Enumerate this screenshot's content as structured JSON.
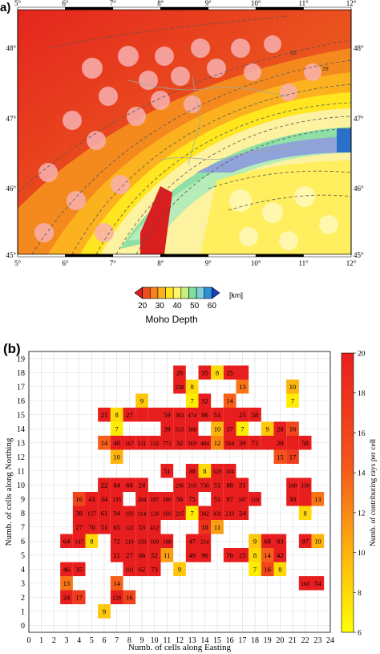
{
  "map": {
    "panel_label": "a)",
    "lon_ticks": [
      "5°",
      "6°",
      "7°",
      "8°",
      "9°",
      "10°",
      "11°",
      "12°"
    ],
    "lat_ticks": [
      "48°",
      "47°",
      "46°",
      "45°"
    ],
    "contour_labels": [
      "32",
      "28"
    ],
    "colorbar": {
      "unit": "[km]",
      "title": "Moho Depth",
      "ticks": [
        "20",
        "30",
        "40",
        "50",
        "60"
      ],
      "colors": [
        "#d81e1e",
        "#ee4e1e",
        "#f8801e",
        "#fbb21e",
        "#ffe61e",
        "#fff66e",
        "#c8f07e",
        "#7ee09e",
        "#7ecfd6",
        "#2a8fd8",
        "#1e3fb8"
      ]
    }
  },
  "chart_data": {
    "type": "heatmap",
    "panel_label": "(b)",
    "xlabel": "Numb. of cells along Easting",
    "ylabel": "Numb. of cells along Northing",
    "colorbar_label": "Numb. of contributing rays per cell",
    "xlim": [
      0,
      24
    ],
    "ylim": [
      -0.5,
      19.5
    ],
    "x_ticks": [
      "0",
      "1",
      "2",
      "3",
      "4",
      "5",
      "6",
      "7",
      "8",
      "9",
      "10",
      "11",
      "12",
      "13",
      "14",
      "15",
      "16",
      "17",
      "18",
      "19",
      "20",
      "21",
      "22",
      "23",
      "24"
    ],
    "y_ticks": [
      "0",
      "1",
      "2",
      "3",
      "4",
      "5",
      "6",
      "7",
      "8",
      "9",
      "10",
      "11",
      "12",
      "13",
      "14",
      "15",
      "16",
      "17",
      "18",
      "19"
    ],
    "colorbar_ticks": [
      "6",
      "8",
      "10",
      "12",
      "14",
      "16",
      "18",
      "20"
    ],
    "color_range": [
      6,
      20
    ],
    "cells": [
      {
        "x": 12,
        "y": 18,
        "label": "28"
      },
      {
        "x": 14,
        "y": 18,
        "label": "35"
      },
      {
        "x": 15,
        "y": 18,
        "label": "8"
      },
      {
        "x": 16,
        "y": 18,
        "label": "25"
      },
      {
        "x": 17,
        "y": 18,
        "label": ""
      },
      {
        "x": 12,
        "y": 17,
        "label": "228"
      },
      {
        "x": 13,
        "y": 17,
        "label": "8"
      },
      {
        "x": 17,
        "y": 17,
        "label": "13"
      },
      {
        "x": 21,
        "y": 17,
        "label": "10"
      },
      {
        "x": 9,
        "y": 16,
        "label": "9"
      },
      {
        "x": 13,
        "y": 16,
        "label": "7"
      },
      {
        "x": 14,
        "y": 16,
        "label": "32"
      },
      {
        "x": 16,
        "y": 16,
        "label": "14"
      },
      {
        "x": 21,
        "y": 16,
        "label": "7"
      },
      {
        "x": 6,
        "y": 15,
        "label": "21"
      },
      {
        "x": 7,
        "y": 15,
        "label": "8"
      },
      {
        "x": 8,
        "y": 15,
        "label": "27"
      },
      {
        "x": 9,
        "y": 15,
        "label": ""
      },
      {
        "x": 10,
        "y": 15,
        "label": ""
      },
      {
        "x": 11,
        "y": 15,
        "label": "59"
      },
      {
        "x": 12,
        "y": 15,
        "label": "383"
      },
      {
        "x": 13,
        "y": 15,
        "label": "474"
      },
      {
        "x": 14,
        "y": 15,
        "label": "86"
      },
      {
        "x": 15,
        "y": 15,
        "label": "51"
      },
      {
        "x": 16,
        "y": 15,
        "label": ""
      },
      {
        "x": 17,
        "y": 15,
        "label": "25"
      },
      {
        "x": 18,
        "y": 15,
        "label": "58"
      },
      {
        "x": 7,
        "y": 14,
        "label": "7"
      },
      {
        "x": 11,
        "y": 14,
        "label": "39"
      },
      {
        "x": 12,
        "y": 14,
        "label": "533"
      },
      {
        "x": 13,
        "y": 14,
        "label": "308"
      },
      {
        "x": 15,
        "y": 14,
        "label": "10"
      },
      {
        "x": 16,
        "y": 14,
        "label": "37"
      },
      {
        "x": 17,
        "y": 14,
        "label": "7"
      },
      {
        "x": 19,
        "y": 14,
        "label": "9"
      },
      {
        "x": 20,
        "y": 14,
        "label": "28"
      },
      {
        "x": 21,
        "y": 14,
        "label": "16"
      },
      {
        "x": 6,
        "y": 13,
        "label": "14"
      },
      {
        "x": 7,
        "y": 13,
        "label": "40"
      },
      {
        "x": 8,
        "y": 13,
        "label": "167"
      },
      {
        "x": 9,
        "y": 13,
        "label": "531"
      },
      {
        "x": 10,
        "y": 13,
        "label": "132"
      },
      {
        "x": 11,
        "y": 13,
        "label": "771"
      },
      {
        "x": 12,
        "y": 13,
        "label": "32"
      },
      {
        "x": 13,
        "y": 13,
        "label": "569"
      },
      {
        "x": 14,
        "y": 13,
        "label": "484"
      },
      {
        "x": 15,
        "y": 13,
        "label": "12"
      },
      {
        "x": 16,
        "y": 13,
        "label": "504"
      },
      {
        "x": 17,
        "y": 13,
        "label": "39"
      },
      {
        "x": 18,
        "y": 13,
        "label": "71"
      },
      {
        "x": 19,
        "y": 13,
        "label": ""
      },
      {
        "x": 20,
        "y": 13,
        "label": "20"
      },
      {
        "x": 21,
        "y": 13,
        "label": ""
      },
      {
        "x": 22,
        "y": 13,
        "label": "58"
      },
      {
        "x": 7,
        "y": 12,
        "label": "10"
      },
      {
        "x": 20,
        "y": 12,
        "label": "15"
      },
      {
        "x": 21,
        "y": 12,
        "label": "17"
      },
      {
        "x": 11,
        "y": 11,
        "label": "51"
      },
      {
        "x": 13,
        "y": 11,
        "label": "38"
      },
      {
        "x": 14,
        "y": 11,
        "label": "8"
      },
      {
        "x": 15,
        "y": 11,
        "label": "529"
      },
      {
        "x": 16,
        "y": 11,
        "label": "104"
      },
      {
        "x": 6,
        "y": 10,
        "label": "22"
      },
      {
        "x": 7,
        "y": 10,
        "label": "84"
      },
      {
        "x": 8,
        "y": 10,
        "label": "60"
      },
      {
        "x": 9,
        "y": 10,
        "label": "24"
      },
      {
        "x": 12,
        "y": 10,
        "label": "296"
      },
      {
        "x": 13,
        "y": 10,
        "label": "310"
      },
      {
        "x": 14,
        "y": 10,
        "label": "730"
      },
      {
        "x": 15,
        "y": 10,
        "label": "51"
      },
      {
        "x": 16,
        "y": 10,
        "label": "80"
      },
      {
        "x": 17,
        "y": 10,
        "label": "51"
      },
      {
        "x": 21,
        "y": 10,
        "label": "100"
      },
      {
        "x": 22,
        "y": 10,
        "label": "130"
      },
      {
        "x": 4,
        "y": 9,
        "label": "16"
      },
      {
        "x": 5,
        "y": 9,
        "label": "43"
      },
      {
        "x": 6,
        "y": 9,
        "label": "34"
      },
      {
        "x": 7,
        "y": 9,
        "label": "135"
      },
      {
        "x": 9,
        "y": 9,
        "label": "204"
      },
      {
        "x": 10,
        "y": 9,
        "label": "187"
      },
      {
        "x": 11,
        "y": 9,
        "label": "280"
      },
      {
        "x": 12,
        "y": 9,
        "label": "56"
      },
      {
        "x": 13,
        "y": 9,
        "label": "75"
      },
      {
        "x": 15,
        "y": 9,
        "label": "51"
      },
      {
        "x": 16,
        "y": 9,
        "label": "87"
      },
      {
        "x": 17,
        "y": 9,
        "label": "347"
      },
      {
        "x": 18,
        "y": 9,
        "label": "118"
      },
      {
        "x": 21,
        "y": 9,
        "label": "30"
      },
      {
        "x": 22,
        "y": 9,
        "label": ""
      },
      {
        "x": 23,
        "y": 9,
        "label": "13"
      },
      {
        "x": 4,
        "y": 8,
        "label": "38"
      },
      {
        "x": 5,
        "y": 8,
        "label": "157"
      },
      {
        "x": 6,
        "y": 8,
        "label": "61"
      },
      {
        "x": 7,
        "y": 8,
        "label": "34"
      },
      {
        "x": 8,
        "y": 8,
        "label": "193"
      },
      {
        "x": 9,
        "y": 8,
        "label": "114"
      },
      {
        "x": 10,
        "y": 8,
        "label": "128"
      },
      {
        "x": 11,
        "y": 8,
        "label": "160"
      },
      {
        "x": 12,
        "y": 8,
        "label": "215"
      },
      {
        "x": 13,
        "y": 8,
        "label": "7"
      },
      {
        "x": 14,
        "y": 8,
        "label": "342"
      },
      {
        "x": 15,
        "y": 8,
        "label": "431"
      },
      {
        "x": 16,
        "y": 8,
        "label": "233"
      },
      {
        "x": 17,
        "y": 8,
        "label": "24"
      },
      {
        "x": 22,
        "y": 8,
        "label": "8"
      },
      {
        "x": 4,
        "y": 7,
        "label": "27"
      },
      {
        "x": 5,
        "y": 7,
        "label": "70"
      },
      {
        "x": 6,
        "y": 7,
        "label": "51"
      },
      {
        "x": 7,
        "y": 7,
        "label": "65"
      },
      {
        "x": 8,
        "y": 7,
        "label": "122"
      },
      {
        "x": 9,
        "y": 7,
        "label": "53"
      },
      {
        "x": 10,
        "y": 7,
        "label": "412"
      },
      {
        "x": 14,
        "y": 7,
        "label": "18"
      },
      {
        "x": 15,
        "y": 7,
        "label": "11"
      },
      {
        "x": 3,
        "y": 6,
        "label": "64"
      },
      {
        "x": 4,
        "y": 6,
        "label": "147"
      },
      {
        "x": 5,
        "y": 6,
        "label": "8"
      },
      {
        "x": 7,
        "y": 6,
        "label": "72"
      },
      {
        "x": 8,
        "y": 6,
        "label": "219"
      },
      {
        "x": 9,
        "y": 6,
        "label": "193"
      },
      {
        "x": 10,
        "y": 6,
        "label": "169"
      },
      {
        "x": 11,
        "y": 6,
        "label": "188"
      },
      {
        "x": 13,
        "y": 6,
        "label": "47"
      },
      {
        "x": 14,
        "y": 6,
        "label": "214"
      },
      {
        "x": 18,
        "y": 6,
        "label": "9"
      },
      {
        "x": 19,
        "y": 6,
        "label": "68"
      },
      {
        "x": 20,
        "y": 6,
        "label": "83"
      },
      {
        "x": 22,
        "y": 6,
        "label": "97"
      },
      {
        "x": 23,
        "y": 6,
        "label": "10"
      },
      {
        "x": 7,
        "y": 5,
        "label": "21"
      },
      {
        "x": 8,
        "y": 5,
        "label": "27"
      },
      {
        "x": 9,
        "y": 5,
        "label": "66"
      },
      {
        "x": 10,
        "y": 5,
        "label": "52"
      },
      {
        "x": 11,
        "y": 5,
        "label": "11"
      },
      {
        "x": 13,
        "y": 5,
        "label": "49"
      },
      {
        "x": 14,
        "y": 5,
        "label": "90"
      },
      {
        "x": 16,
        "y": 5,
        "label": "70"
      },
      {
        "x": 17,
        "y": 5,
        "label": "25"
      },
      {
        "x": 18,
        "y": 5,
        "label": "8"
      },
      {
        "x": 19,
        "y": 5,
        "label": "14"
      },
      {
        "x": 20,
        "y": 5,
        "label": "42"
      },
      {
        "x": 3,
        "y": 4,
        "label": "46"
      },
      {
        "x": 4,
        "y": 4,
        "label": "35"
      },
      {
        "x": 8,
        "y": 4,
        "label": "101"
      },
      {
        "x": 9,
        "y": 4,
        "label": "62"
      },
      {
        "x": 10,
        "y": 4,
        "label": "73"
      },
      {
        "x": 12,
        "y": 4,
        "label": "9"
      },
      {
        "x": 18,
        "y": 4,
        "label": "7"
      },
      {
        "x": 19,
        "y": 4,
        "label": "16"
      },
      {
        "x": 20,
        "y": 4,
        "label": "8"
      },
      {
        "x": 3,
        "y": 3,
        "label": "13"
      },
      {
        "x": 7,
        "y": 3,
        "label": "14"
      },
      {
        "x": 22,
        "y": 3,
        "label": "160"
      },
      {
        "x": 23,
        "y": 3,
        "label": "54"
      },
      {
        "x": 3,
        "y": 2,
        "label": "24"
      },
      {
        "x": 4,
        "y": 2,
        "label": "17"
      },
      {
        "x": 7,
        "y": 2,
        "label": "128"
      },
      {
        "x": 8,
        "y": 2,
        "label": "16"
      },
      {
        "x": 6,
        "y": 1,
        "label": "9"
      }
    ]
  }
}
